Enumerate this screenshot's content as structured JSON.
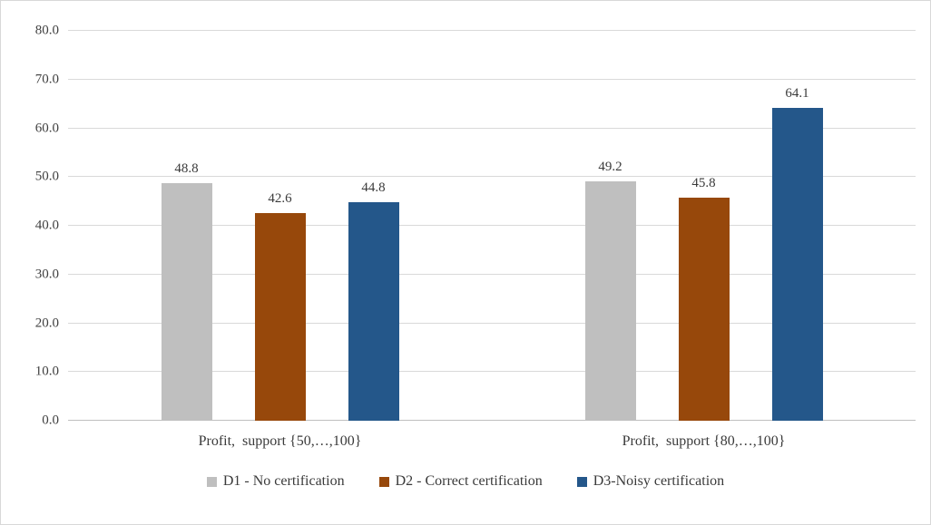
{
  "chart_data": {
    "type": "bar",
    "title": "",
    "xlabel": "",
    "ylabel": "",
    "categories": [
      "Profit,  support {50,…,100}",
      "Profit,  support {80,…,100}"
    ],
    "series": [
      {
        "name": "D1 - No certification",
        "color": "#BFBFBF",
        "values": [
          48.8,
          49.2
        ]
      },
      {
        "name": "D2 - Correct certification",
        "color": "#97480B",
        "values": [
          42.6,
          45.8
        ]
      },
      {
        "name": "D3-Noisy certification",
        "color": "#24578A",
        "values": [
          44.8,
          64.1
        ]
      }
    ],
    "ylim": [
      0,
      80
    ],
    "ytick_step": 10,
    "ytick_labels": [
      "0.0",
      "10.0",
      "20.0",
      "30.0",
      "40.0",
      "50.0",
      "60.0",
      "70.0",
      "80.0"
    ],
    "grid": true,
    "data_labels": true,
    "legend_position": "bottom",
    "colors": {
      "gridline": "#d9d9d9",
      "axis_text": "#404040",
      "background": "#ffffff"
    }
  }
}
